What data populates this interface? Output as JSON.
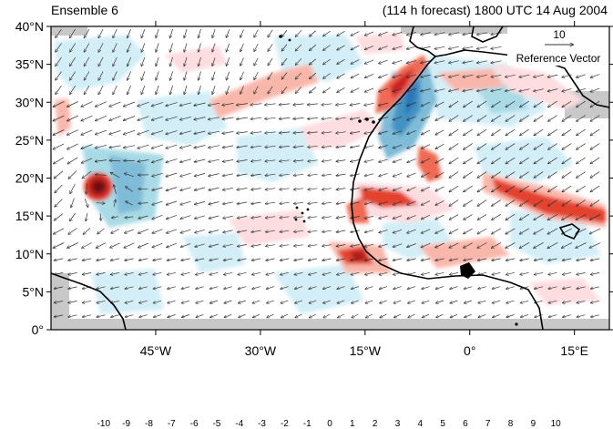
{
  "header": {
    "left_title": "Ensemble 6",
    "right_title": "(114 h forecast) 1800 UTC 14 Aug 2004"
  },
  "map": {
    "lon_range": [
      -60,
      20
    ],
    "lat_range": [
      0,
      40
    ],
    "y_ticks": [
      "40°N",
      "35°N",
      "30°N",
      "25°N",
      "20°N",
      "15°N",
      "10°N",
      "5°N",
      "0°"
    ],
    "x_ticks": [
      "45°W",
      "30°W",
      "15°W",
      "0°",
      "15°E"
    ],
    "missing_color": "#c8c8c8",
    "coast_color": "#000000",
    "vector_color": "#333333"
  },
  "reference_vector": {
    "magnitude": "10",
    "label": "Reference Vector"
  },
  "colorbar": {
    "labels": [
      "-10",
      "-9",
      "-8",
      "-7",
      "-6",
      "-5",
      "-4",
      "-3",
      "-2",
      "-1",
      "0",
      "1",
      "2",
      "3",
      "4",
      "5",
      "6",
      "7",
      "8",
      "9",
      "10"
    ],
    "colors": [
      "#0b1e4a",
      "#0c2d6e",
      "#18519b",
      "#1e66b0",
      "#2a78bb",
      "#4393c3",
      "#5ea8cf",
      "#7fbcd8",
      "#a9dae6",
      "#d3eef7",
      "#ffffff",
      "#ffffff",
      "#fddde0",
      "#f9b7ab",
      "#f59282",
      "#ef6b55",
      "#e3432f",
      "#cd2424",
      "#b11b1f",
      "#8f101a",
      "#6b0a0f",
      "#4e0408"
    ]
  }
}
